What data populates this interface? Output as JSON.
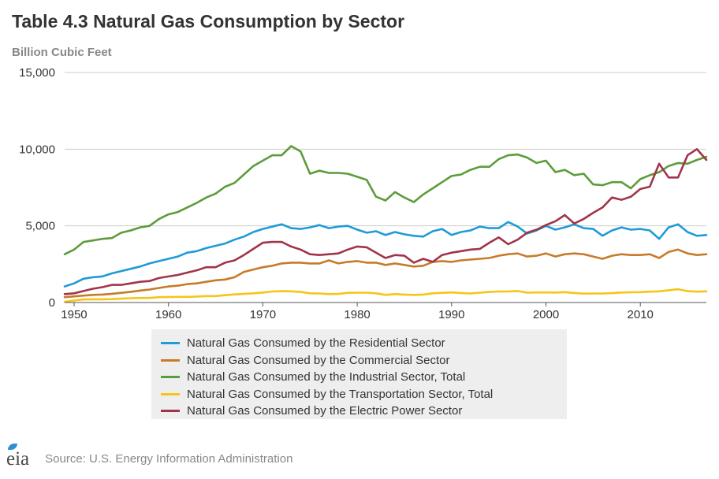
{
  "header": {
    "title": "Table 4.3 Natural Gas Consumption by Sector",
    "units": "Billion Cubic Feet"
  },
  "footer": {
    "logo_text": "eia",
    "source": "Source: U.S. Energy Information Administration"
  },
  "colors": {
    "residential": "#1f9bd7",
    "commercial": "#c77b2a",
    "industrial": "#5c9c3a",
    "transportation": "#f5c518",
    "electric": "#a0354a",
    "axis": "#555555",
    "grid": "#cccccc"
  },
  "chart_data": {
    "type": "line",
    "title": "Table 4.3 Natural Gas Consumption by Sector",
    "ylabel": "Billion Cubic Feet",
    "xlabel": "",
    "xlim": [
      1949,
      2017
    ],
    "ylim": [
      0,
      15000
    ],
    "yticks": [
      0,
      5000,
      10000,
      15000
    ],
    "ytick_labels": [
      "0",
      "5,000",
      "10,000",
      "15,000"
    ],
    "xticks": [
      1950,
      1960,
      1970,
      1980,
      1990,
      2000,
      2010
    ],
    "xtick_labels": [
      "1950",
      "1960",
      "1970",
      "1980",
      "1990",
      "2000",
      "2010"
    ],
    "grid": true,
    "legend_position": "bottom-center",
    "x": [
      1949,
      1950,
      1951,
      1952,
      1953,
      1954,
      1955,
      1956,
      1957,
      1958,
      1959,
      1960,
      1961,
      1962,
      1963,
      1964,
      1965,
      1966,
      1967,
      1968,
      1969,
      1970,
      1971,
      1972,
      1973,
      1974,
      1975,
      1976,
      1977,
      1978,
      1979,
      1980,
      1981,
      1982,
      1983,
      1984,
      1985,
      1986,
      1987,
      1988,
      1989,
      1990,
      1991,
      1992,
      1993,
      1994,
      1995,
      1996,
      1997,
      1998,
      1999,
      2000,
      2001,
      2002,
      2003,
      2004,
      2005,
      2006,
      2007,
      2008,
      2009,
      2010,
      2011,
      2012,
      2013,
      2014,
      2015,
      2016,
      2017
    ],
    "series": [
      {
        "key": "residential",
        "name": "Natural Gas Consumed by the Residential Sector",
        "values": [
          1050,
          1250,
          1550,
          1650,
          1700,
          1900,
          2050,
          2200,
          2350,
          2550,
          2700,
          2850,
          3000,
          3250,
          3350,
          3550,
          3700,
          3850,
          4100,
          4300,
          4600,
          4800,
          4950,
          5100,
          4850,
          4800,
          4900,
          5050,
          4850,
          4950,
          5000,
          4750,
          4550,
          4650,
          4400,
          4600,
          4450,
          4350,
          4300,
          4650,
          4800,
          4400,
          4600,
          4700,
          4950,
          4850,
          4850,
          5250,
          4950,
          4500,
          4700,
          5000,
          4750,
          4900,
          5100,
          4850,
          4800,
          4350,
          4700,
          4900,
          4750,
          4800,
          4700,
          4150,
          4900,
          5100,
          4600,
          4350,
          4400
        ]
      },
      {
        "key": "commercial",
        "name": "Natural Gas Consumed by the Commercial Sector",
        "values": [
          350,
          400,
          450,
          500,
          520,
          570,
          630,
          700,
          780,
          850,
          950,
          1050,
          1100,
          1200,
          1250,
          1350,
          1450,
          1500,
          1650,
          2000,
          2150,
          2300,
          2400,
          2550,
          2600,
          2600,
          2550,
          2550,
          2750,
          2550,
          2650,
          2700,
          2600,
          2600,
          2450,
          2550,
          2450,
          2350,
          2400,
          2650,
          2700,
          2650,
          2750,
          2800,
          2850,
          2900,
          3050,
          3150,
          3200,
          3000,
          3050,
          3200,
          3000,
          3150,
          3200,
          3150,
          3000,
          2850,
          3050,
          3150,
          3100,
          3100,
          3150,
          2900,
          3300,
          3450,
          3200,
          3100,
          3150
        ]
      },
      {
        "key": "industrial",
        "name": "Natural Gas Consumed by the Industrial Sector, Total",
        "values": [
          3150,
          3450,
          3950,
          4050,
          4150,
          4200,
          4550,
          4700,
          4900,
          5000,
          5450,
          5750,
          5900,
          6200,
          6500,
          6850,
          7100,
          7550,
          7800,
          8350,
          8900,
          9250,
          9600,
          9600,
          10200,
          9850,
          8400,
          8600,
          8450,
          8450,
          8400,
          8200,
          8000,
          6900,
          6650,
          7200,
          6850,
          6550,
          7050,
          7450,
          7850,
          8250,
          8350,
          8650,
          8850,
          8850,
          9350,
          9600,
          9650,
          9450,
          9100,
          9250,
          8500,
          8650,
          8300,
          8400,
          7700,
          7650,
          7850,
          7850,
          7450,
          8050,
          8300,
          8500,
          8900,
          9100,
          9050,
          9300,
          9500
        ]
      },
      {
        "key": "transportation",
        "name": "Natural Gas Consumed by the Transportation Sector, Total",
        "values": [
          50,
          130,
          200,
          210,
          210,
          220,
          250,
          280,
          300,
          300,
          350,
          360,
          370,
          370,
          390,
          420,
          420,
          480,
          530,
          560,
          600,
          650,
          720,
          740,
          730,
          690,
          600,
          590,
          550,
          560,
          630,
          640,
          640,
          600,
          500,
          550,
          520,
          500,
          520,
          600,
          630,
          660,
          620,
          590,
          640,
          690,
          720,
          720,
          750,
          640,
          660,
          660,
          650,
          680,
          620,
          580,
          590,
          590,
          610,
          650,
          670,
          680,
          710,
          730,
          800,
          870,
          740,
          710,
          730
        ]
      },
      {
        "key": "electric",
        "name": "Natural Gas Consumed by the Electric Power Sector",
        "values": [
          550,
          600,
          750,
          900,
          1000,
          1150,
          1150,
          1250,
          1350,
          1400,
          1600,
          1700,
          1800,
          1950,
          2100,
          2300,
          2300,
          2600,
          2750,
          3100,
          3500,
          3900,
          3950,
          3950,
          3650,
          3450,
          3150,
          3100,
          3150,
          3200,
          3450,
          3650,
          3600,
          3250,
          2900,
          3100,
          3050,
          2600,
          2850,
          2650,
          3100,
          3250,
          3350,
          3450,
          3500,
          3900,
          4250,
          3800,
          4100,
          4550,
          4750,
          5050,
          5300,
          5700,
          5150,
          5450,
          5850,
          6200,
          6850,
          6700,
          6900,
          7400,
          7550,
          9050,
          8150,
          8150,
          9600,
          10000,
          9300
        ]
      }
    ]
  }
}
